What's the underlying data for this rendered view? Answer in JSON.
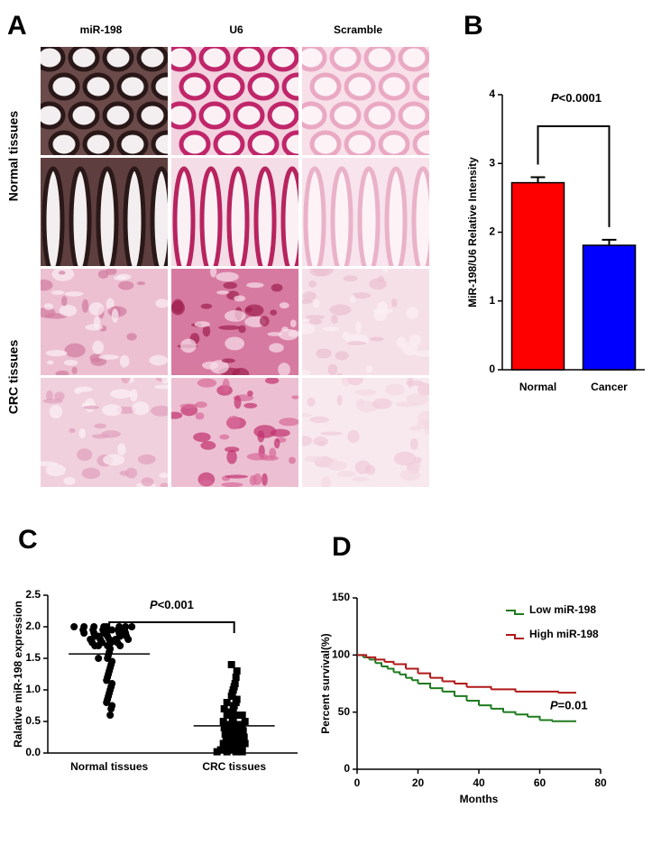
{
  "figure": {
    "panel_a": {
      "label": "A",
      "columns": [
        "miR-198",
        "U6",
        "Scramble"
      ],
      "rows": [
        "Normal tissues",
        "CRC tissues"
      ]
    }
  },
  "chart_data": [
    {
      "type": "bar",
      "panel_label": "B",
      "categories": [
        "Normal",
        "Cancer"
      ],
      "values": [
        2.72,
        1.81
      ],
      "errors": [
        0.08,
        0.08
      ],
      "colors": [
        "#ff0000",
        "#0000ff"
      ],
      "y_label": "MiR-198/U6 Relative Intensity",
      "ylim": [
        0,
        4
      ],
      "yticks": [
        0,
        1,
        2,
        3,
        4
      ],
      "annotation": {
        "italic": "P",
        "text": "<0.0001"
      }
    },
    {
      "type": "dot",
      "panel_label": "C",
      "categories": [
        "Normal tissues",
        "CRC tissues"
      ],
      "groups": [
        {
          "marker": "circle",
          "mean": 1.57,
          "values": [
            2.0,
            2.0,
            2.0,
            2.0,
            2.0,
            2.0,
            2.0,
            2.0,
            1.95,
            1.95,
            1.95,
            1.95,
            1.95,
            1.95,
            1.9,
            1.9,
            1.9,
            1.9,
            1.9,
            1.9,
            1.85,
            1.85,
            1.85,
            1.85,
            1.85,
            1.8,
            1.8,
            1.8,
            1.8,
            1.8,
            1.75,
            1.75,
            1.75,
            1.75,
            1.7,
            1.7,
            1.7,
            1.7,
            1.65,
            1.6,
            1.55,
            1.5,
            1.5,
            1.45,
            1.4,
            1.35,
            1.3,
            1.25,
            1.2,
            1.15,
            1.1,
            1.05,
            1.0,
            0.95,
            0.9,
            0.85,
            0.8,
            0.75,
            0.7,
            0.6
          ]
        },
        {
          "marker": "square",
          "mean": 0.43,
          "values": [
            1.4,
            1.3,
            1.2,
            1.1,
            1.05,
            1.0,
            0.95,
            0.9,
            0.85,
            0.8,
            0.8,
            0.75,
            0.7,
            0.7,
            0.65,
            0.65,
            0.6,
            0.6,
            0.6,
            0.55,
            0.5,
            0.5,
            0.5,
            0.45,
            0.45,
            0.45,
            0.4,
            0.4,
            0.4,
            0.35,
            0.35,
            0.35,
            0.3,
            0.3,
            0.3,
            0.25,
            0.25,
            0.25,
            0.2,
            0.2,
            0.2,
            0.15,
            0.15,
            0.15,
            0.1,
            0.1,
            0.1,
            0.05,
            0.05,
            0.05,
            0.05,
            0.02,
            0.02,
            0.02,
            0.02
          ]
        }
      ],
      "y_label": "Ralative miR-198 expression",
      "ylim": [
        0,
        2.5
      ],
      "yticks": [
        {
          "value": 0,
          "label": "0.0"
        },
        0.5,
        {
          "value": 1,
          "label": "1.0"
        },
        1.5,
        {
          "value": 2,
          "label": "2.0"
        },
        2.5
      ],
      "annotation": {
        "italic": "P",
        "text": "<0.001"
      }
    },
    {
      "type": "line",
      "step": true,
      "panel_label": "D",
      "series": [
        {
          "name": "Low miR-198",
          "color": "#1f7a1f",
          "x": [
            0,
            2,
            4,
            6,
            8,
            10,
            12,
            14,
            16,
            18,
            20,
            24,
            28,
            32,
            36,
            40,
            44,
            48,
            52,
            56,
            60,
            64,
            72
          ],
          "values": [
            100,
            98,
            96,
            93,
            90,
            88,
            85,
            83,
            80,
            78,
            75,
            71,
            68,
            64,
            60,
            56,
            53,
            50,
            48,
            46,
            43,
            42,
            42
          ]
        },
        {
          "name": "High miR-198",
          "color": "#b01818",
          "x": [
            0,
            3,
            6,
            9,
            12,
            16,
            20,
            24,
            28,
            32,
            36,
            44,
            52,
            60,
            66,
            72
          ],
          "values": [
            100,
            98,
            96,
            94,
            92,
            88,
            84,
            80,
            77,
            75,
            72,
            70,
            68,
            68,
            67,
            67
          ]
        }
      ],
      "x_label": "Months",
      "y_label": "Percent survival(%)",
      "xlim": [
        0,
        80
      ],
      "xticks": [
        0,
        20,
        40,
        60,
        80
      ],
      "ylim": [
        0,
        150
      ],
      "yticks": [
        0,
        50,
        100,
        150
      ],
      "legend": "top-right",
      "annotation": {
        "italic": "P",
        "text": "=0.01"
      }
    }
  ]
}
